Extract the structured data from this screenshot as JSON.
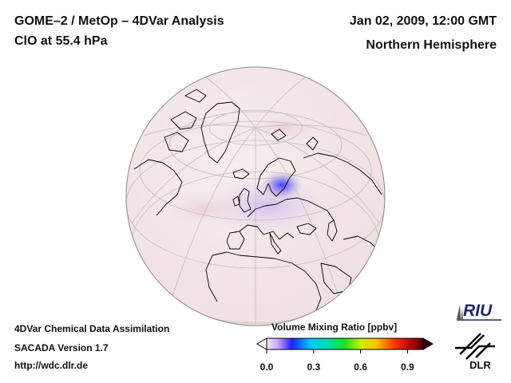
{
  "header": {
    "title_line1": "GOME–2 / MetOp – 4DVar Analysis",
    "title_line2": "ClO at 55.4 hPa",
    "date": "Jan 02, 2009, 12:00 GMT",
    "region": "Northern Hemisphere"
  },
  "footer": {
    "line1": "4DVar Chemical Data Assimilation",
    "line2": "SACADA Version 1.7",
    "url": "http://wdc.dlr.de"
  },
  "colorbar": {
    "title": "Volume Mixing Ratio [ppbv]",
    "ticks": [
      "0.0",
      "0.3",
      "0.6",
      "0.9"
    ],
    "min": 0.0,
    "max": 1.0
  },
  "logos": {
    "riu": "RIU",
    "dlr": "DLR"
  },
  "colors": {
    "background_field": "#f5e9ea",
    "enhanced_clo": "#4d4dff",
    "coastline": "#000000",
    "grid": "#b8b8b8"
  }
}
